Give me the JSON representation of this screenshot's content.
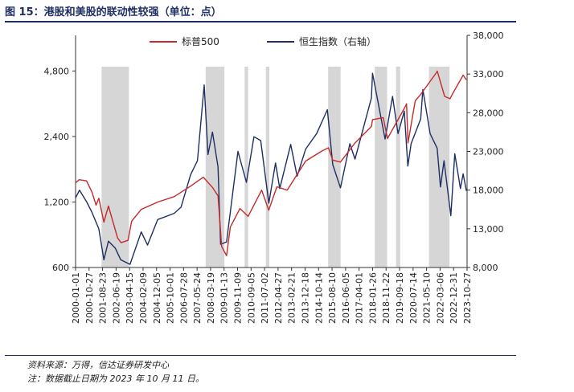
{
  "title": "图 15：港股和美股的联动性较强（单位：点）",
  "source": "资料来源：万得，信达证券研发中心",
  "footnote": "注：数据截止日期为 2023 年 10 月 11 日。",
  "chart_data": {
    "type": "line",
    "legend": [
      {
        "name": "标普500",
        "color": "#c62a2a"
      },
      {
        "name": "恒生指数（右轴）",
        "color": "#1f2f63"
      }
    ],
    "x_range": [
      "2000-01-01",
      "2023-10-27"
    ],
    "x_ticks": [
      "2000-01-01",
      "2000-10-27",
      "2001-08-23",
      "2002-06-19",
      "2003-04-15",
      "2004-02-09",
      "2004-12-05",
      "2005-10-01",
      "2006-07-28",
      "2007-05-24",
      "2008-03-19",
      "2009-01-13",
      "2009-11-09",
      "2010-09-05",
      "2011-07-02",
      "2012-04-27",
      "2013-02-21",
      "2013-12-18",
      "2014-10-14",
      "2015-08-10",
      "2016-06-05",
      "2017-04-01",
      "2018-01-26",
      "2018-11-22",
      "2019-09-18",
      "2020-07-14",
      "2021-05-10",
      "2022-03-06",
      "2022-12-31",
      "2023-10-27"
    ],
    "left_axis": {
      "scale": "log",
      "ylim": [
        600,
        7000
      ],
      "ticks": [
        600,
        1200,
        2400,
        4800
      ],
      "tick_labels": [
        "600",
        "1,200",
        "2,400",
        "4,800"
      ]
    },
    "right_axis": {
      "scale": "linear",
      "ylim": [
        8000,
        38000
      ],
      "ticks": [
        8000,
        13000,
        18000,
        23000,
        28000,
        33000,
        38000
      ],
      "tick_labels": [
        "8,000",
        "13,000",
        "18,000",
        "23,000",
        "28,000",
        "33,000",
        "38,000"
      ]
    },
    "shaded_periods": [
      {
        "start": "2001-08-01",
        "end": "2003-04-01"
      },
      {
        "start": "2007-12-01",
        "end": "2009-01-20"
      },
      {
        "start": "2010-04-15",
        "end": "2010-07-01"
      },
      {
        "start": "2011-08-01",
        "end": "2011-10-15"
      },
      {
        "start": "2015-05-15",
        "end": "2016-02-15"
      },
      {
        "start": "2018-03-15",
        "end": "2018-12-15"
      },
      {
        "start": "2019-07-01",
        "end": "2019-10-01"
      },
      {
        "start": "2021-07-01",
        "end": "2022-10-01"
      }
    ],
    "series": [
      {
        "name": "标普500",
        "axis": "left",
        "points": [
          [
            "2000-01-01",
            1470
          ],
          [
            "2000-03-24",
            1520
          ],
          [
            "2000-09-01",
            1500
          ],
          [
            "2001-01-01",
            1330
          ],
          [
            "2001-04-01",
            1160
          ],
          [
            "2001-06-01",
            1250
          ],
          [
            "2001-09-21",
            970
          ],
          [
            "2002-01-01",
            1150
          ],
          [
            "2002-07-23",
            820
          ],
          [
            "2002-10-09",
            780
          ],
          [
            "2003-03-11",
            800
          ],
          [
            "2003-06-01",
            980
          ],
          [
            "2004-01-01",
            1110
          ],
          [
            "2005-01-01",
            1200
          ],
          [
            "2006-01-01",
            1270
          ],
          [
            "2007-01-01",
            1420
          ],
          [
            "2007-10-09",
            1560
          ],
          [
            "2008-05-01",
            1400
          ],
          [
            "2008-09-01",
            1280
          ],
          [
            "2008-11-20",
            750
          ],
          [
            "2009-03-09",
            680
          ],
          [
            "2009-06-01",
            920
          ],
          [
            "2010-01-01",
            1120
          ],
          [
            "2010-07-01",
            1030
          ],
          [
            "2011-04-29",
            1360
          ],
          [
            "2011-10-03",
            1100
          ],
          [
            "2012-04-01",
            1410
          ],
          [
            "2012-11-15",
            1360
          ],
          [
            "2013-12-31",
            1850
          ],
          [
            "2014-12-31",
            2060
          ],
          [
            "2015-05-21",
            2130
          ],
          [
            "2015-08-25",
            1870
          ],
          [
            "2016-02-11",
            1830
          ],
          [
            "2016-12-31",
            2240
          ],
          [
            "2017-12-31",
            2670
          ],
          [
            "2018-01-26",
            2870
          ],
          [
            "2018-09-20",
            2930
          ],
          [
            "2018-12-24",
            2350
          ],
          [
            "2019-12-31",
            3230
          ],
          [
            "2020-02-19",
            3390
          ],
          [
            "2020-03-23",
            2240
          ],
          [
            "2020-08-31",
            3500
          ],
          [
            "2021-01-01",
            3750
          ],
          [
            "2021-12-31",
            4770
          ],
          [
            "2022-01-03",
            4800
          ],
          [
            "2022-06-16",
            3670
          ],
          [
            "2022-10-12",
            3580
          ],
          [
            "2022-12-31",
            3840
          ],
          [
            "2023-07-31",
            4590
          ],
          [
            "2023-10-11",
            4370
          ]
        ]
      },
      {
        "name": "恒生指数（右轴）",
        "axis": "right",
        "points": [
          [
            "2000-01-01",
            17000
          ],
          [
            "2000-03-28",
            18000
          ],
          [
            "2000-09-01",
            16500
          ],
          [
            "2001-01-01",
            15100
          ],
          [
            "2001-06-01",
            13000
          ],
          [
            "2001-09-21",
            9000
          ],
          [
            "2002-01-01",
            11400
          ],
          [
            "2002-06-01",
            10500
          ],
          [
            "2002-10-01",
            9000
          ],
          [
            "2003-04-25",
            8400
          ],
          [
            "2003-12-31",
            12600
          ],
          [
            "2004-05-17",
            10900
          ],
          [
            "2004-12-31",
            14200
          ],
          [
            "2005-12-31",
            15000
          ],
          [
            "2006-06-01",
            15800
          ],
          [
            "2006-12-31",
            20000
          ],
          [
            "2007-06-01",
            21800
          ],
          [
            "2007-10-30",
            31600
          ],
          [
            "2008-01-22",
            22600
          ],
          [
            "2008-05-01",
            25500
          ],
          [
            "2008-09-01",
            21000
          ],
          [
            "2008-10-27",
            11000
          ],
          [
            "2009-03-09",
            11300
          ],
          [
            "2009-11-18",
            23000
          ],
          [
            "2010-05-25",
            19000
          ],
          [
            "2010-11-08",
            24900
          ],
          [
            "2011-04-08",
            24400
          ],
          [
            "2011-10-04",
            16300
          ],
          [
            "2012-03-01",
            21500
          ],
          [
            "2012-06-04",
            18200
          ],
          [
            "2013-02-01",
            23900
          ],
          [
            "2013-06-24",
            19800
          ],
          [
            "2013-12-31",
            23300
          ],
          [
            "2014-09-02",
            25300
          ],
          [
            "2015-04-28",
            28400
          ],
          [
            "2015-08-24",
            21300
          ],
          [
            "2016-02-12",
            18300
          ],
          [
            "2016-09-09",
            24000
          ],
          [
            "2016-12-31",
            22000
          ],
          [
            "2017-12-31",
            29900
          ],
          [
            "2018-01-26",
            33100
          ],
          [
            "2018-10-30",
            24600
          ],
          [
            "2019-04-15",
            30100
          ],
          [
            "2019-08-15",
            25300
          ],
          [
            "2019-12-31",
            28200
          ],
          [
            "2020-03-19",
            21100
          ],
          [
            "2020-06-01",
            24000
          ],
          [
            "2020-12-31",
            27200
          ],
          [
            "2021-02-17",
            31000
          ],
          [
            "2021-07-28",
            25300
          ],
          [
            "2021-12-31",
            23400
          ],
          [
            "2022-03-15",
            18400
          ],
          [
            "2022-06-01",
            21800
          ],
          [
            "2022-10-31",
            14700
          ],
          [
            "2023-01-27",
            22700
          ],
          [
            "2023-05-31",
            18200
          ],
          [
            "2023-07-31",
            20100
          ],
          [
            "2023-10-11",
            17900
          ]
        ]
      }
    ]
  }
}
